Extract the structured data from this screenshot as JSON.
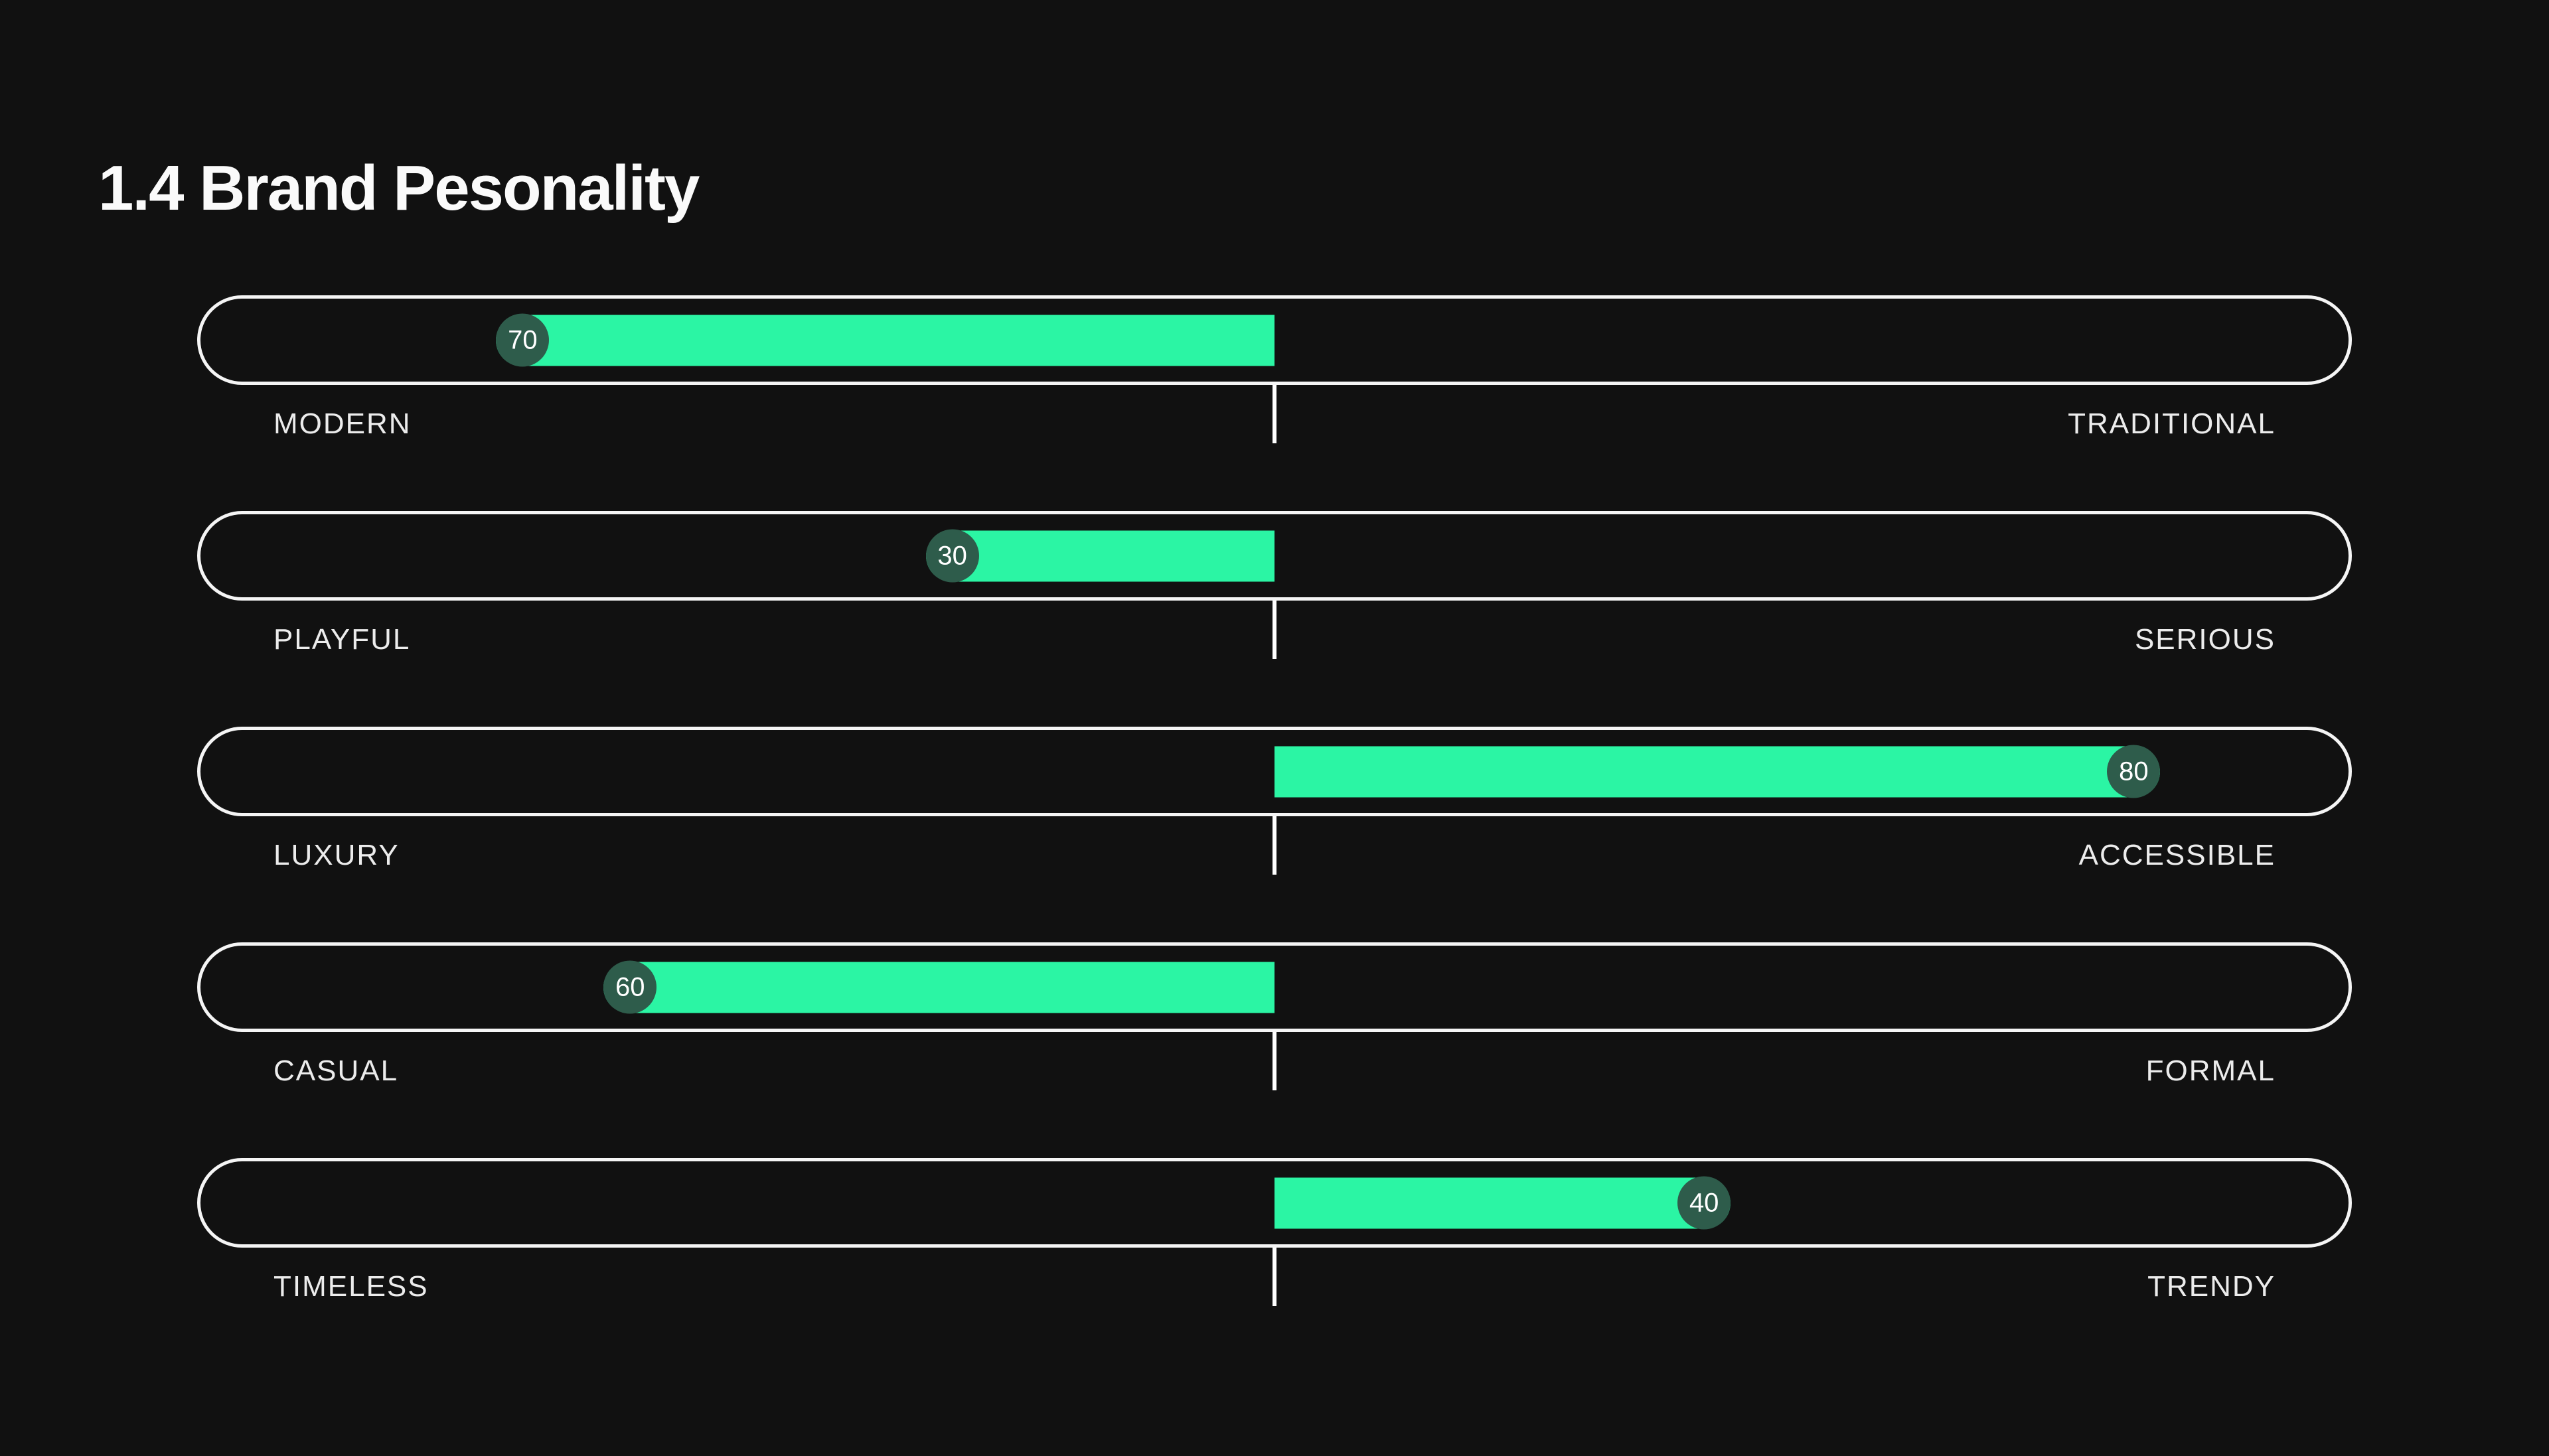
{
  "title": "1.4 Brand Pesonality",
  "colors": {
    "background": "#111111",
    "bar_fill": "#2bf5a4",
    "badge_fill": "#2e5c4b",
    "badge_text": "#ffffff",
    "track_border": "#f5f5f5",
    "label_text": "#ececec",
    "title_text": "#fafafa",
    "tick": "#ffffff"
  },
  "rows": [
    {
      "left_label": "MODERN",
      "right_label": "TRADITIONAL",
      "value": 70,
      "side": "left"
    },
    {
      "left_label": "PLAYFUL",
      "right_label": "SERIOUS",
      "value": 30,
      "side": "left"
    },
    {
      "left_label": "LUXURY",
      "right_label": "ACCESSIBLE",
      "value": 80,
      "side": "right"
    },
    {
      "left_label": "CASUAL",
      "right_label": "FORMAL",
      "value": 60,
      "side": "left"
    },
    {
      "left_label": "TIMELESS",
      "right_label": "TRENDY",
      "value": 40,
      "side": "right"
    }
  ],
  "chart_data": {
    "type": "bar",
    "subtype": "diverging-semantic-differential-sliders",
    "title": "1.4 Brand Pesonality",
    "axis": {
      "center_value": 0,
      "max_from_center": 100,
      "center_marker": "tick"
    },
    "scales": [
      {
        "left_pole": "MODERN",
        "right_pole": "TRADITIONAL",
        "value": 70,
        "direction": "left"
      },
      {
        "left_pole": "PLAYFUL",
        "right_pole": "SERIOUS",
        "value": 30,
        "direction": "left"
      },
      {
        "left_pole": "LUXURY",
        "right_pole": "ACCESSIBLE",
        "value": 80,
        "direction": "right"
      },
      {
        "left_pole": "CASUAL",
        "right_pole": "FORMAL",
        "value": 60,
        "direction": "left"
      },
      {
        "left_pole": "TIMELESS",
        "right_pole": "TRENDY",
        "value": 40,
        "direction": "right"
      }
    ],
    "legend": "none",
    "grid": "off"
  }
}
